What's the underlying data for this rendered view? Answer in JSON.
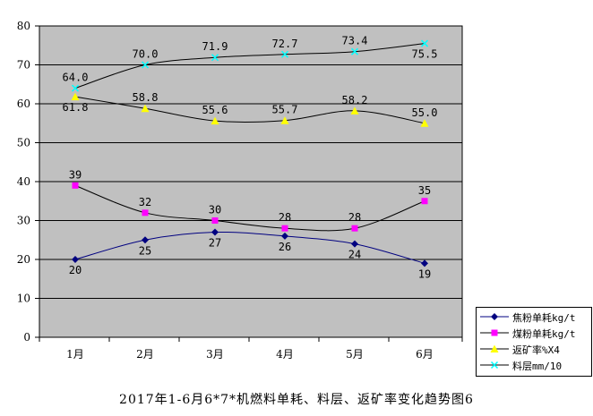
{
  "chart_data": {
    "type": "line",
    "title": "2017年1-6月6*7*机燃料单耗、料层、返矿率变化趋势图6",
    "categories": [
      "1月",
      "2月",
      "3月",
      "4月",
      "5月",
      "6月"
    ],
    "ylim": [
      0,
      80
    ],
    "yticks": [
      0,
      10,
      20,
      30,
      40,
      50,
      60,
      70,
      80
    ],
    "grid": "horizontal",
    "plot_background": "#c0c0c0",
    "legend_position": "bottom-right",
    "series": [
      {
        "name": "焦粉单耗kg/t",
        "values": [
          20,
          25,
          27,
          26,
          24,
          19
        ],
        "labels": [
          "20",
          "25",
          "27",
          "26",
          "24",
          "19"
        ],
        "line_color": "#000080",
        "marker_color": "#000080",
        "marker": "diamond"
      },
      {
        "name": "煤粉单耗kg/t",
        "values": [
          39,
          32,
          30,
          28,
          28,
          35
        ],
        "labels": [
          "39",
          "32",
          "30",
          "28",
          "28",
          "35"
        ],
        "line_color": "#000000",
        "marker_color": "#ff00ff",
        "marker": "square"
      },
      {
        "name": "返矿率%X4",
        "values": [
          61.8,
          58.8,
          55.6,
          55.7,
          58.2,
          55.0
        ],
        "labels": [
          "61.8",
          "58.8",
          "55.6",
          "55.7",
          "58.2",
          "55.0"
        ],
        "line_color": "#000000",
        "marker_color": "#ffff00",
        "marker": "triangle"
      },
      {
        "name": "料层mm/10",
        "values": [
          64.0,
          70.0,
          71.9,
          72.7,
          73.4,
          75.5
        ],
        "labels": [
          "64.0",
          "70.0",
          "71.9",
          "72.7",
          "73.4",
          "75.5"
        ],
        "line_color": "#000000",
        "marker_color": "#00ffff",
        "marker": "x"
      }
    ]
  }
}
